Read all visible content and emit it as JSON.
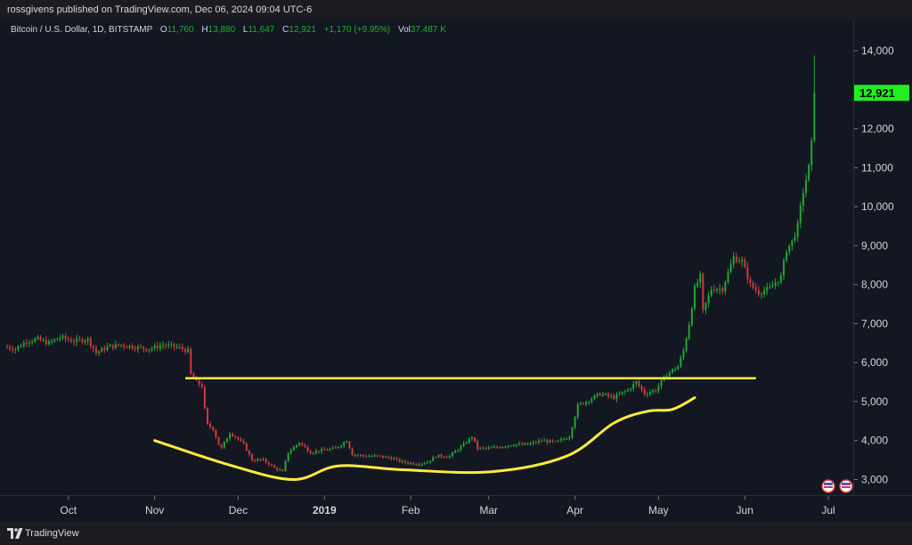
{
  "header": {
    "published": "rossgivens published on TradingView.com, Dec 06, 2024 09:04 UTC-6"
  },
  "legend": {
    "symbol": "Bitcoin / U.S. Dollar, 1D, BITSTAMP",
    "o_label": "O",
    "o_value": "11,760",
    "h_label": "H",
    "h_value": "13,880",
    "l_label": "L",
    "l_value": "11,647",
    "c_label": "C",
    "c_value": "12,921",
    "change": "+1,170 (+9.95%)",
    "vol_label": "Vol",
    "vol_value": "37.487 K"
  },
  "price_tag": "12,921",
  "footer": {
    "brand": "TradingView"
  },
  "colors": {
    "up": "#22ab33",
    "down": "#d63a3a",
    "annotation": "#ffeb3b",
    "background": "#131722",
    "tag": "#22ee22"
  },
  "chart_data": {
    "type": "candlestick",
    "symbol": "BTC/USD",
    "timeframe": "1D",
    "exchange": "BITSTAMP",
    "y_ticks": [
      14000,
      13000,
      12000,
      11000,
      10000,
      9000,
      8000,
      7000,
      6000,
      5000,
      4000,
      3000
    ],
    "y_tick_labels": [
      "14,000",
      "13,000",
      "12,000",
      "11,000",
      "10,000",
      "9,000",
      "8,000",
      "7,000",
      "6,000",
      "5,000",
      "4,000",
      "3,000"
    ],
    "ylim": [
      2600,
      14800
    ],
    "x_ticks": [
      {
        "label": "Oct",
        "date": "2018-10-01",
        "bold": false
      },
      {
        "label": "Nov",
        "date": "2018-11-01",
        "bold": false
      },
      {
        "label": "Dec",
        "date": "2018-12-01",
        "bold": false
      },
      {
        "label": "2019",
        "date": "2019-01-01",
        "bold": true
      },
      {
        "label": "Feb",
        "date": "2019-02-01",
        "bold": false
      },
      {
        "label": "Mar",
        "date": "2019-03-01",
        "bold": false
      },
      {
        "label": "Apr",
        "date": "2019-04-01",
        "bold": false
      },
      {
        "label": "May",
        "date": "2019-05-01",
        "bold": false
      },
      {
        "label": "Jun",
        "date": "2019-06-01",
        "bold": false
      },
      {
        "label": "Jul",
        "date": "2019-07-01",
        "bold": false
      }
    ],
    "xlim": [
      "2018-09-09",
      "2019-07-01"
    ],
    "close_path": [
      [
        "2018-09-09",
        6400
      ],
      [
        "2018-09-12",
        6350
      ],
      [
        "2018-09-16",
        6550
      ],
      [
        "2018-09-20",
        6600
      ],
      [
        "2018-09-24",
        6500
      ],
      [
        "2018-09-28",
        6650
      ],
      [
        "2018-10-03",
        6550
      ],
      [
        "2018-10-08",
        6600
      ],
      [
        "2018-10-11",
        6250
      ],
      [
        "2018-10-15",
        6400
      ],
      [
        "2018-10-20",
        6450
      ],
      [
        "2018-10-25",
        6400
      ],
      [
        "2018-10-30",
        6350
      ],
      [
        "2018-11-04",
        6450
      ],
      [
        "2018-11-09",
        6400
      ],
      [
        "2018-11-13",
        6300
      ],
      [
        "2018-11-14",
        5700
      ],
      [
        "2018-11-16",
        5500
      ],
      [
        "2018-11-18",
        5400
      ],
      [
        "2018-11-19",
        4800
      ],
      [
        "2018-11-20",
        4400
      ],
      [
        "2018-11-22",
        4300
      ],
      [
        "2018-11-24",
        3900
      ],
      [
        "2018-11-25",
        3800
      ],
      [
        "2018-11-28",
        4200
      ],
      [
        "2018-11-30",
        4100
      ],
      [
        "2018-12-03",
        3900
      ],
      [
        "2018-12-06",
        3500
      ],
      [
        "2018-12-10",
        3500
      ],
      [
        "2018-12-14",
        3300
      ],
      [
        "2018-12-17",
        3200
      ],
      [
        "2018-12-19",
        3700
      ],
      [
        "2018-12-23",
        3950
      ],
      [
        "2018-12-27",
        3700
      ],
      [
        "2018-12-31",
        3750
      ],
      [
        "2019-01-05",
        3800
      ],
      [
        "2019-01-09",
        4000
      ],
      [
        "2019-01-11",
        3650
      ],
      [
        "2019-01-15",
        3600
      ],
      [
        "2019-01-20",
        3600
      ],
      [
        "2019-01-25",
        3550
      ],
      [
        "2019-01-29",
        3450
      ],
      [
        "2019-02-03",
        3400
      ],
      [
        "2019-02-07",
        3450
      ],
      [
        "2019-02-10",
        3600
      ],
      [
        "2019-02-15",
        3600
      ],
      [
        "2019-02-20",
        3900
      ],
      [
        "2019-02-23",
        4100
      ],
      [
        "2019-02-25",
        3800
      ],
      [
        "2019-03-01",
        3800
      ],
      [
        "2019-03-06",
        3850
      ],
      [
        "2019-03-10",
        3900
      ],
      [
        "2019-03-15",
        3900
      ],
      [
        "2019-03-20",
        4000
      ],
      [
        "2019-03-25",
        3950
      ],
      [
        "2019-03-30",
        4100
      ],
      [
        "2019-04-02",
        4900
      ],
      [
        "2019-04-05",
        5000
      ],
      [
        "2019-04-10",
        5200
      ],
      [
        "2019-04-15",
        5100
      ],
      [
        "2019-04-20",
        5300
      ],
      [
        "2019-04-23",
        5500
      ],
      [
        "2019-04-26",
        5200
      ],
      [
        "2019-04-30",
        5300
      ],
      [
        "2019-05-04",
        5700
      ],
      [
        "2019-05-08",
        5900
      ],
      [
        "2019-05-10",
        6300
      ],
      [
        "2019-05-12",
        7000
      ],
      [
        "2019-05-14",
        7900
      ],
      [
        "2019-05-16",
        8200
      ],
      [
        "2019-05-17",
        7300
      ],
      [
        "2019-05-20",
        7900
      ],
      [
        "2019-05-24",
        7900
      ],
      [
        "2019-05-28",
        8700
      ],
      [
        "2019-05-31",
        8600
      ],
      [
        "2019-06-03",
        8000
      ],
      [
        "2019-06-06",
        7800
      ],
      [
        "2019-06-10",
        7900
      ],
      [
        "2019-06-14",
        8200
      ],
      [
        "2019-06-16",
        8900
      ],
      [
        "2019-06-18",
        9100
      ],
      [
        "2019-06-20",
        9500
      ],
      [
        "2019-06-22",
        10400
      ],
      [
        "2019-06-24",
        11000
      ],
      [
        "2019-06-25",
        11600
      ],
      [
        "2019-06-26",
        12921
      ]
    ],
    "annotations": [
      {
        "type": "horizontal_line",
        "y": 5600,
        "x_start": "2018-11-12",
        "x_end": "2019-06-05"
      },
      {
        "type": "curve",
        "points": [
          [
            "2018-11-01",
            4000
          ],
          [
            "2018-11-29",
            3350
          ],
          [
            "2018-12-21",
            3000
          ],
          [
            "2019-01-06",
            3350
          ],
          [
            "2019-01-29",
            3250
          ],
          [
            "2019-03-02",
            3200
          ],
          [
            "2019-03-29",
            3600
          ],
          [
            "2019-04-15",
            4450
          ],
          [
            "2019-04-27",
            4750
          ],
          [
            "2019-05-06",
            4800
          ],
          [
            "2019-05-14",
            5100
          ]
        ]
      }
    ]
  }
}
